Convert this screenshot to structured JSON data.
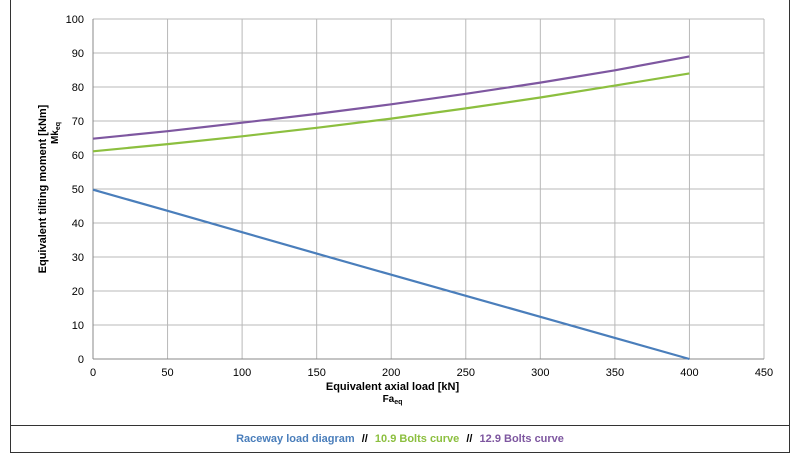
{
  "chart_data": {
    "type": "line",
    "xlabel": "Equivalent axial load [kN]",
    "xlabel_sub": "Fa",
    "xlabel_sub_script": "eq",
    "ylabel": "Equivalent tilting moment [kNm]",
    "ylabel_sub": "Mk",
    "ylabel_sub_script": "eq",
    "xlim": [
      0,
      450
    ],
    "ylim": [
      0,
      100
    ],
    "xticks": [
      0,
      50,
      100,
      150,
      200,
      250,
      300,
      350,
      400,
      450
    ],
    "yticks": [
      0,
      10,
      20,
      30,
      40,
      50,
      60,
      70,
      80,
      90,
      100
    ],
    "grid": true,
    "series": [
      {
        "name": "Raceway load diagram",
        "color": "#4a7ebb",
        "x": [
          0,
          50,
          100,
          150,
          200,
          250,
          300,
          350,
          400
        ],
        "values": [
          49.8,
          43.6,
          37.3,
          31.0,
          24.8,
          18.6,
          12.4,
          6.2,
          0
        ]
      },
      {
        "name": "10.9 Bolts curve",
        "color": "#8cbf3f",
        "x": [
          0,
          50,
          100,
          150,
          200,
          250,
          300,
          350,
          400
        ],
        "values": [
          61.1,
          63.2,
          65.5,
          68.0,
          70.7,
          73.7,
          76.9,
          80.4,
          84.0
        ]
      },
      {
        "name": "12.9 Bolts curve",
        "color": "#7e57a0",
        "x": [
          0,
          50,
          100,
          150,
          200,
          250,
          300,
          350,
          400
        ],
        "values": [
          64.8,
          67.0,
          69.5,
          72.1,
          74.9,
          78.0,
          81.3,
          84.9,
          89.0
        ]
      }
    ]
  },
  "legend": {
    "separator": "//"
  }
}
